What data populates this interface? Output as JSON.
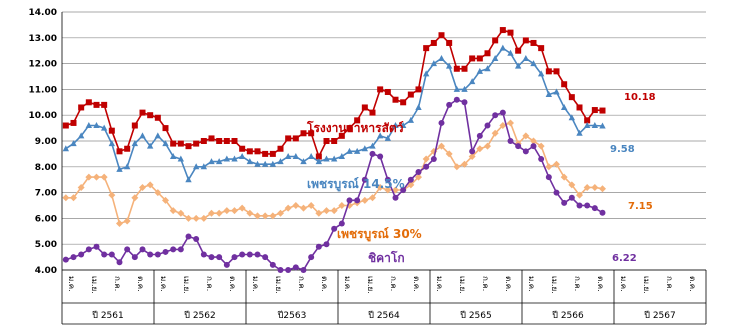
{
  "chart_data": {
    "type": "line",
    "ylim": [
      4.0,
      14.0
    ],
    "yticks": [
      "14.00",
      "13.00",
      "12.00",
      "11.00",
      "10.00",
      "9.00",
      "8.00",
      "7.00",
      "6.00",
      "5.00",
      "4.00"
    ],
    "grid": true,
    "x_month_labels": [
      "ม.ค.",
      "เม.ย.",
      "ก.ค.",
      "ต.ค."
    ],
    "years": [
      "ปี 2561",
      "ปี 2562",
      "ปี2563",
      "ปี 2564",
      "ปี 2565",
      "ปี 2566",
      "ปี 2567"
    ],
    "series": [
      {
        "name": "โรงงานอาหารสัตว์",
        "color": "#c00000",
        "marker": "square",
        "end_label": "10.18",
        "values": [
          9.6,
          9.7,
          10.3,
          10.5,
          10.4,
          10.4,
          9.4,
          8.6,
          8.7,
          9.6,
          10.1,
          10.0,
          9.9,
          9.5,
          8.9,
          8.9,
          8.8,
          8.9,
          9.0,
          9.1,
          9.0,
          9.0,
          9.0,
          8.7,
          8.6,
          8.6,
          8.5,
          8.5,
          8.7,
          9.1,
          9.1,
          9.3,
          9.3,
          8.4,
          9.0,
          9.0,
          9.2,
          9.5,
          9.8,
          10.3,
          10.1,
          11.0,
          10.9,
          10.6,
          10.5,
          10.8,
          11.0,
          12.6,
          12.8,
          13.1,
          12.8,
          11.8,
          11.8,
          12.2,
          12.2,
          12.4,
          12.9,
          13.3,
          13.2,
          12.5,
          12.9,
          12.8,
          12.6,
          11.7,
          11.7,
          11.2,
          10.7,
          10.3,
          9.8,
          10.2,
          10.18
        ]
      },
      {
        "name": "เพชรบูรณ์ 14.5%",
        "color": "#4a86c0",
        "marker": "triangle",
        "end_label": "9.58",
        "values": [
          8.7,
          8.9,
          9.2,
          9.6,
          9.6,
          9.5,
          8.9,
          7.9,
          8.0,
          8.9,
          9.2,
          8.8,
          9.2,
          8.9,
          8.4,
          8.3,
          7.5,
          8.0,
          8.0,
          8.2,
          8.2,
          8.3,
          8.3,
          8.4,
          8.2,
          8.1,
          8.1,
          8.1,
          8.2,
          8.4,
          8.4,
          8.2,
          8.4,
          8.2,
          8.3,
          8.3,
          8.4,
          8.6,
          8.6,
          8.7,
          8.8,
          9.2,
          9.1,
          9.6,
          9.6,
          9.8,
          10.3,
          11.6,
          12.0,
          12.2,
          11.9,
          11.0,
          11.0,
          11.3,
          11.7,
          11.8,
          12.2,
          12.6,
          12.4,
          11.9,
          12.2,
          12.0,
          11.6,
          10.8,
          10.9,
          10.3,
          9.9,
          9.3,
          9.6,
          9.6,
          9.58
        ]
      },
      {
        "name": "เพชรบูรณ์ 30%",
        "color": "#f5b27a",
        "marker": "diamond",
        "end_label": "7.15",
        "values": [
          6.8,
          6.8,
          7.2,
          7.6,
          7.6,
          7.6,
          6.9,
          5.8,
          5.9,
          6.8,
          7.2,
          7.3,
          7.0,
          6.7,
          6.3,
          6.2,
          6.0,
          6.0,
          6.0,
          6.2,
          6.2,
          6.3,
          6.3,
          6.4,
          6.2,
          6.1,
          6.1,
          6.1,
          6.2,
          6.4,
          6.5,
          6.4,
          6.5,
          6.2,
          6.3,
          6.3,
          6.5,
          6.5,
          6.6,
          6.7,
          6.8,
          7.2,
          7.1,
          7.1,
          7.1,
          7.3,
          7.6,
          8.3,
          8.6,
          8.8,
          8.5,
          8.0,
          8.1,
          8.4,
          8.7,
          8.8,
          9.3,
          9.6,
          9.7,
          8.9,
          9.2,
          9.0,
          8.8,
          8.0,
          8.1,
          7.6,
          7.3,
          6.9,
          7.2,
          7.2,
          7.15
        ]
      },
      {
        "name": "ชิคาโก",
        "color": "#7030a0",
        "marker": "circle",
        "end_label": "6.22",
        "values": [
          4.4,
          4.5,
          4.6,
          4.8,
          4.9,
          4.6,
          4.6,
          4.3,
          4.8,
          4.5,
          4.8,
          4.6,
          4.6,
          4.7,
          4.8,
          4.8,
          5.3,
          5.2,
          4.6,
          4.5,
          4.5,
          4.2,
          4.5,
          4.6,
          4.6,
          4.6,
          4.5,
          4.2,
          4.0,
          4.0,
          4.1,
          4.0,
          4.5,
          4.9,
          5.0,
          5.6,
          5.8,
          6.7,
          6.7,
          7.5,
          8.5,
          8.4,
          7.5,
          6.8,
          7.1,
          7.5,
          7.8,
          8.0,
          8.3,
          9.7,
          10.4,
          10.6,
          10.5,
          8.6,
          9.2,
          9.6,
          10.0,
          10.1,
          9.0,
          8.8,
          8.6,
          8.8,
          8.3,
          7.6,
          7.0,
          6.6,
          6.8,
          6.5,
          6.5,
          6.4,
          6.22
        ]
      }
    ]
  }
}
